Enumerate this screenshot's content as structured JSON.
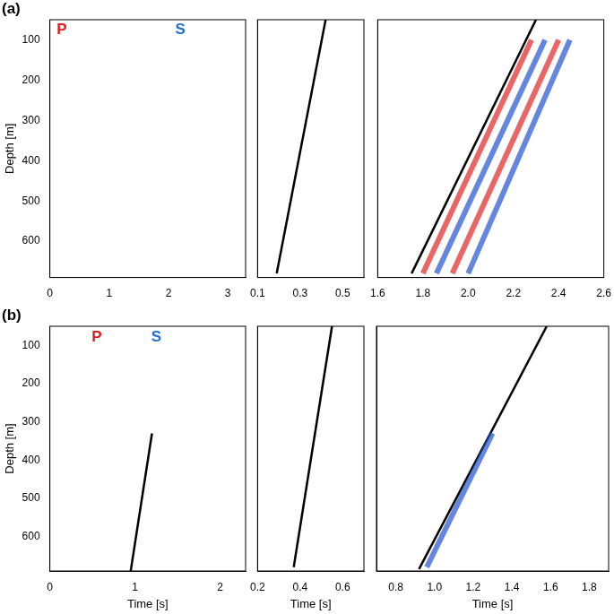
{
  "chart_data": [
    {
      "type": "line",
      "panel_label": "(a)",
      "ylabel": "Depth [m]",
      "xlim": [
        0,
        3.3
      ],
      "xticks": [
        0,
        1,
        2,
        3
      ],
      "ylim": [
        50,
        690
      ],
      "yticks": [
        100,
        200,
        300,
        400,
        500,
        600
      ],
      "grid": false,
      "annotations": [
        {
          "text": "P",
          "x": 0.2,
          "y": 75,
          "color": "#e02020"
        },
        {
          "text": "S",
          "x": 2.2,
          "y": 75,
          "color": "#1f6fd0"
        }
      ],
      "series": []
    },
    {
      "type": "line",
      "tick_labels": "x",
      "xlim": [
        0.1,
        0.6
      ],
      "xticks": [
        0.1,
        0.3,
        0.5
      ],
      "ylim": [
        50,
        690
      ],
      "yticks": [
        100,
        200,
        300,
        400,
        500,
        600
      ],
      "grid": false,
      "series": [
        {
          "color": "#000000",
          "line_style": "solid",
          "x": [
            0.19,
            0.42
          ],
          "y": [
            680,
            50
          ]
        }
      ]
    },
    {
      "type": "line",
      "tick_labels": "x",
      "xlim": [
        1.6,
        2.6
      ],
      "xticks": [
        1.6,
        1.8,
        {
          "value": 2,
          "label": "2.0"
        },
        2.2,
        2.4,
        2.6
      ],
      "ylim": [
        50,
        690
      ],
      "yticks": [
        100,
        200,
        300,
        400,
        500,
        600
      ],
      "grid": false,
      "series": [
        {
          "type": "band",
          "color": "#e02020",
          "x": [
            1.8,
            2.28
          ],
          "y": [
            680,
            100
          ]
        },
        {
          "type": "band",
          "color": "#1f4fd0",
          "x": [
            1.86,
            2.34
          ],
          "y": [
            680,
            100
          ]
        },
        {
          "type": "band",
          "color": "#e02020",
          "x": [
            1.93,
            2.4
          ],
          "y": [
            680,
            100
          ]
        },
        {
          "type": "band",
          "color": "#1f4fd0",
          "x": [
            2.0,
            2.45
          ],
          "y": [
            680,
            100
          ]
        },
        {
          "color": "#000000",
          "line_style": "solid",
          "x": [
            1.75,
            2.3
          ],
          "y": [
            680,
            50
          ]
        }
      ]
    },
    {
      "type": "line",
      "panel_label": "(b)",
      "ylabel": "Depth [m]",
      "xlabel": "Time [s]",
      "xlim": [
        0,
        2.3
      ],
      "xticks": [
        0,
        1,
        2
      ],
      "ylim": [
        50,
        690
      ],
      "yticks": [
        100,
        200,
        300,
        400,
        500,
        600
      ],
      "grid": false,
      "annotations": [
        {
          "text": "P",
          "x": 0.55,
          "y": 80,
          "color": "#e02020"
        },
        {
          "text": "S",
          "x": 1.25,
          "y": 80,
          "color": "#1f6fd0"
        }
      ],
      "series": [
        {
          "color": "#000000",
          "line_style": "solid",
          "x": [
            0.95,
            1.2
          ],
          "y": [
            690,
            330
          ]
        }
      ]
    },
    {
      "type": "line",
      "tick_labels": "x",
      "xlabel": "Time [s]",
      "xlim": [
        0.2,
        0.7
      ],
      "xticks": [
        0.2,
        0.4,
        0.6
      ],
      "ylim": [
        50,
        690
      ],
      "yticks": [
        100,
        200,
        300,
        400,
        500,
        600
      ],
      "grid": false,
      "series": [
        {
          "color": "#000000",
          "line_style": "solid",
          "x": [
            0.37,
            0.55
          ],
          "y": [
            680,
            50
          ]
        }
      ]
    },
    {
      "type": "line",
      "tick_labels": "x",
      "xlabel": "Time [s]",
      "xlim": [
        0.7,
        1.9
      ],
      "xticks": [
        0.8,
        {
          "value": 1,
          "label": "1.0"
        },
        1.2,
        1.4,
        1.6,
        1.8
      ],
      "ylim": [
        50,
        690
      ],
      "yticks": [
        100,
        200,
        300,
        400,
        500,
        600
      ],
      "grid": false,
      "series": [
        {
          "type": "band",
          "color": "#1f4fd0",
          "x": [
            0.96,
            1.3
          ],
          "y": [
            680,
            330
          ]
        },
        {
          "color": "#000000",
          "line_style": "solid",
          "x": [
            0.92,
            1.58
          ],
          "y": [
            685,
            50
          ]
        }
      ]
    }
  ]
}
